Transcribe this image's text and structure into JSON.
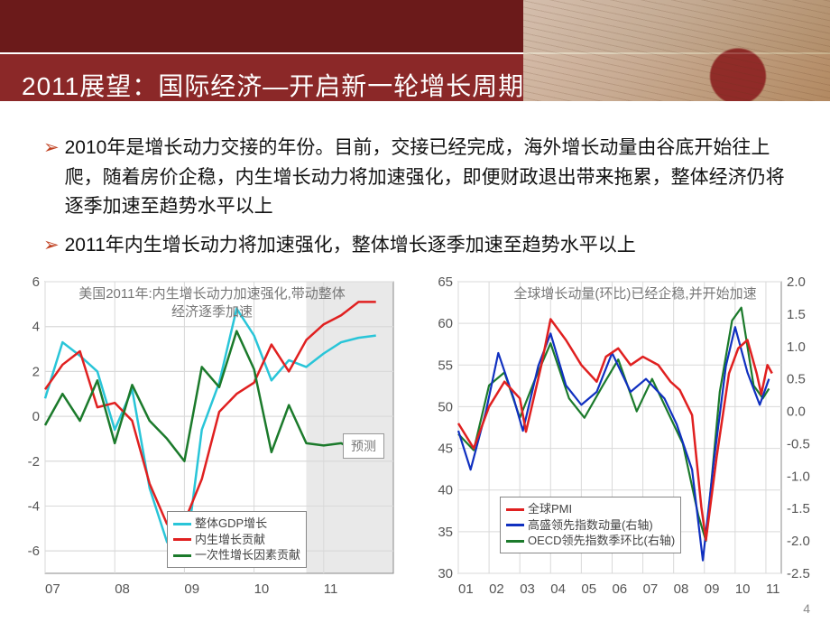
{
  "header": {
    "title": "2011展望：国际经济—开启新一轮增长周期",
    "band_color": "#8b2828",
    "title_color": "#ffffff"
  },
  "bullets": [
    "2010年是增长动力交接的年份。目前，交接已经完成，海外增长动量由谷底开始往上爬，随着房价企稳，内生增长动力将加速强化，即便财政退出带来拖累，整体经济仍将逐季加速至趋势水平以上",
    "2011年内生增长动力将加速强化，整体增长逐季加速至趋势水平以上"
  ],
  "page_number": "4",
  "chart_left": {
    "type": "line",
    "title": "美国2011年:内生增长动力加速强化,带动整体经济逐季加速",
    "xlim": [
      2007,
      2012
    ],
    "ylim": [
      -7,
      6
    ],
    "ytick_step": 2,
    "xticks": [
      "07",
      "08",
      "09",
      "10",
      "11"
    ],
    "grid_color": "#d9d9d9",
    "forecast_label": "预测",
    "forecast_start_x": 2010.75,
    "legend": [
      {
        "label": "整体GDP增长",
        "color": "#29c5d8"
      },
      {
        "label": "内生增长贡献",
        "color": "#e02020"
      },
      {
        "label": "一次性增长因素贡献",
        "color": "#1b7a2b"
      }
    ],
    "series": {
      "gdp": {
        "color": "#29c5d8",
        "width": 2.5,
        "points": [
          [
            2007.0,
            0.8
          ],
          [
            2007.25,
            3.3
          ],
          [
            2007.5,
            2.7
          ],
          [
            2007.75,
            2.0
          ],
          [
            2008.0,
            -0.6
          ],
          [
            2008.25,
            1.2
          ],
          [
            2008.5,
            -3.2
          ],
          [
            2008.75,
            -5.6
          ],
          [
            2009.0,
            -6.7
          ],
          [
            2009.25,
            -0.6
          ],
          [
            2009.5,
            1.5
          ],
          [
            2009.75,
            4.8
          ],
          [
            2010.0,
            3.6
          ],
          [
            2010.25,
            1.6
          ],
          [
            2010.5,
            2.5
          ],
          [
            2010.75,
            2.2
          ],
          [
            2011.0,
            2.8
          ],
          [
            2011.25,
            3.3
          ],
          [
            2011.5,
            3.5
          ],
          [
            2011.75,
            3.6
          ]
        ]
      },
      "endog": {
        "color": "#e02020",
        "width": 2.5,
        "points": [
          [
            2007.0,
            1.2
          ],
          [
            2007.25,
            2.3
          ],
          [
            2007.5,
            2.9
          ],
          [
            2007.75,
            0.4
          ],
          [
            2008.0,
            0.6
          ],
          [
            2008.25,
            -0.2
          ],
          [
            2008.5,
            -3.0
          ],
          [
            2008.75,
            -4.8
          ],
          [
            2009.0,
            -4.7
          ],
          [
            2009.25,
            -2.8
          ],
          [
            2009.5,
            0.2
          ],
          [
            2009.75,
            1.0
          ],
          [
            2010.0,
            1.5
          ],
          [
            2010.25,
            3.2
          ],
          [
            2010.5,
            2.0
          ],
          [
            2010.75,
            3.4
          ],
          [
            2011.0,
            4.1
          ],
          [
            2011.25,
            4.5
          ],
          [
            2011.5,
            5.1
          ],
          [
            2011.75,
            5.1
          ]
        ]
      },
      "oneoff": {
        "color": "#1b7a2b",
        "width": 2.5,
        "points": [
          [
            2007.0,
            -0.4
          ],
          [
            2007.25,
            1.0
          ],
          [
            2007.5,
            -0.2
          ],
          [
            2007.75,
            1.6
          ],
          [
            2008.0,
            -1.2
          ],
          [
            2008.25,
            1.4
          ],
          [
            2008.5,
            -0.2
          ],
          [
            2008.75,
            -1.0
          ],
          [
            2009.0,
            -2.0
          ],
          [
            2009.25,
            2.2
          ],
          [
            2009.5,
            1.3
          ],
          [
            2009.75,
            3.8
          ],
          [
            2010.0,
            2.1
          ],
          [
            2010.25,
            -1.6
          ],
          [
            2010.5,
            0.5
          ],
          [
            2010.75,
            -1.2
          ],
          [
            2011.0,
            -1.3
          ],
          [
            2011.25,
            -1.2
          ],
          [
            2011.5,
            -1.6
          ],
          [
            2011.75,
            -1.5
          ]
        ]
      }
    }
  },
  "chart_right": {
    "type": "line_dual_axis",
    "title": "全球增长动量(环比)已经企稳,并开始加速",
    "xlim": [
      2001,
      2011.5
    ],
    "ylim_left": [
      30,
      65
    ],
    "ytick_left": [
      30,
      35,
      40,
      45,
      50,
      55,
      60,
      65
    ],
    "ylim_right": [
      -2.5,
      2.0
    ],
    "ytick_right": [
      -2.5,
      -2.0,
      -1.5,
      -1.0,
      -0.5,
      0.0,
      0.5,
      1.0,
      1.5,
      2.0
    ],
    "xticks": [
      "01",
      "02",
      "03",
      "04",
      "05",
      "06",
      "07",
      "08",
      "09",
      "10",
      "11"
    ],
    "grid_color": "#d9d9d9",
    "legend": [
      {
        "label": "全球PMI",
        "color": "#e02020"
      },
      {
        "label": "高盛领先指数动量(右轴)",
        "color": "#1030c0"
      },
      {
        "label": "OECD领先指数季环比(右轴)",
        "color": "#1b7a2b"
      }
    ],
    "series": {
      "pmi": {
        "axis": "left",
        "color": "#e02020",
        "width": 2.5,
        "points": [
          [
            2001.0,
            48
          ],
          [
            2001.5,
            45
          ],
          [
            2002.0,
            50
          ],
          [
            2002.5,
            53
          ],
          [
            2003.0,
            51
          ],
          [
            2003.2,
            47
          ],
          [
            2003.7,
            55
          ],
          [
            2004.0,
            60.5
          ],
          [
            2004.5,
            58
          ],
          [
            2005.0,
            55
          ],
          [
            2005.5,
            53
          ],
          [
            2005.8,
            56
          ],
          [
            2006.2,
            57
          ],
          [
            2006.6,
            55
          ],
          [
            2007.0,
            56
          ],
          [
            2007.5,
            55
          ],
          [
            2007.9,
            53
          ],
          [
            2008.2,
            52
          ],
          [
            2008.6,
            49
          ],
          [
            2008.9,
            38
          ],
          [
            2009.05,
            34
          ],
          [
            2009.4,
            44
          ],
          [
            2009.8,
            54
          ],
          [
            2010.1,
            57
          ],
          [
            2010.4,
            58
          ],
          [
            2010.7,
            54
          ],
          [
            2010.85,
            51.5
          ],
          [
            2011.05,
            55
          ],
          [
            2011.2,
            54
          ]
        ]
      },
      "gs": {
        "axis": "right",
        "color": "#1030c0",
        "width": 2.2,
        "points": [
          [
            2001.0,
            -0.3
          ],
          [
            2001.4,
            -0.9
          ],
          [
            2001.9,
            0.0
          ],
          [
            2002.3,
            0.9
          ],
          [
            2002.8,
            0.2
          ],
          [
            2003.1,
            -0.3
          ],
          [
            2003.6,
            0.7
          ],
          [
            2004.0,
            1.2
          ],
          [
            2004.5,
            0.4
          ],
          [
            2005.0,
            0.1
          ],
          [
            2005.5,
            0.3
          ],
          [
            2006.0,
            0.9
          ],
          [
            2006.6,
            0.3
          ],
          [
            2007.1,
            0.5
          ],
          [
            2007.7,
            0.2
          ],
          [
            2008.1,
            -0.2
          ],
          [
            2008.6,
            -0.9
          ],
          [
            2008.95,
            -2.3
          ],
          [
            2009.3,
            -0.8
          ],
          [
            2009.7,
            0.7
          ],
          [
            2010.0,
            1.3
          ],
          [
            2010.4,
            0.6
          ],
          [
            2010.8,
            0.1
          ],
          [
            2011.1,
            0.5
          ]
        ]
      },
      "oecd": {
        "axis": "right",
        "color": "#1b7a2b",
        "width": 2.2,
        "points": [
          [
            2001.0,
            -0.35
          ],
          [
            2001.5,
            -0.6
          ],
          [
            2002.0,
            0.4
          ],
          [
            2002.5,
            0.6
          ],
          [
            2003.0,
            -0.1
          ],
          [
            2003.5,
            0.5
          ],
          [
            2004.0,
            1.05
          ],
          [
            2004.6,
            0.2
          ],
          [
            2005.1,
            -0.1
          ],
          [
            2005.7,
            0.4
          ],
          [
            2006.2,
            0.8
          ],
          [
            2006.8,
            0.0
          ],
          [
            2007.3,
            0.5
          ],
          [
            2007.9,
            -0.1
          ],
          [
            2008.3,
            -0.5
          ],
          [
            2008.8,
            -1.6
          ],
          [
            2009.05,
            -2.0
          ],
          [
            2009.5,
            0.3
          ],
          [
            2009.9,
            1.4
          ],
          [
            2010.2,
            1.6
          ],
          [
            2010.6,
            0.4
          ],
          [
            2010.9,
            0.2
          ],
          [
            2011.1,
            0.35
          ]
        ]
      }
    }
  }
}
